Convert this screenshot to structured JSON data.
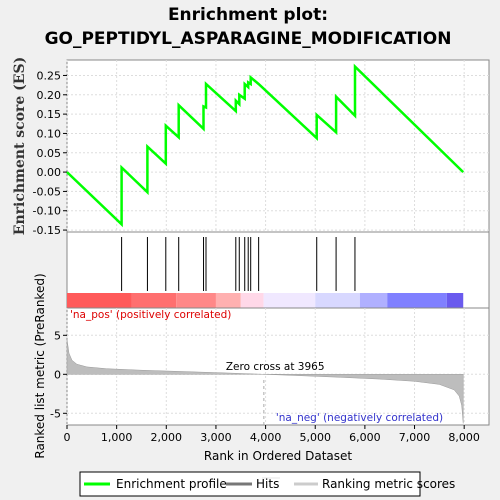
{
  "title_line1": "Enrichment plot:",
  "title_line2": "GO_PEPTIDYL_ASPARAGINE_MODIFICATION",
  "chart_data": {
    "type": "line",
    "x_axis": {
      "label": "Rank in Ordered Dataset",
      "ticks": [
        0,
        1000,
        2000,
        3000,
        4000,
        5000,
        6000,
        7000,
        8000
      ],
      "tick_labels": [
        "0",
        "1,000",
        "2,000",
        "3,000",
        "4,000",
        "5,000",
        "6,000",
        "7,000",
        "8,000"
      ],
      "range": [
        0,
        8500
      ]
    },
    "es_panel": {
      "ylabel": "Enrichment score (ES)",
      "ylim": [
        -0.155,
        0.29
      ],
      "ticks": [
        -0.15,
        -0.1,
        -0.05,
        0.0,
        0.05,
        0.1,
        0.15,
        0.2,
        0.25
      ],
      "tick_labels": [
        "-0.15",
        "-0.10",
        "-0.05",
        "0.00",
        "0.05",
        "0.10",
        "0.15",
        "0.20",
        "0.25"
      ],
      "grid": true,
      "series_color": "#00ff00",
      "profile": [
        [
          0,
          0.0
        ],
        [
          1100,
          -0.135
        ],
        [
          1100,
          0.012
        ],
        [
          1620,
          -0.052
        ],
        [
          1620,
          0.066
        ],
        [
          1990,
          0.022
        ],
        [
          1990,
          0.12
        ],
        [
          2250,
          0.09
        ],
        [
          2250,
          0.173
        ],
        [
          2750,
          0.112
        ],
        [
          2750,
          0.17
        ],
        [
          2800,
          0.167
        ],
        [
          2800,
          0.228
        ],
        [
          3400,
          0.158
        ],
        [
          3400,
          0.185
        ],
        [
          3470,
          0.176
        ],
        [
          3470,
          0.2
        ],
        [
          3580,
          0.19
        ],
        [
          3580,
          0.228
        ],
        [
          3650,
          0.22
        ],
        [
          3650,
          0.232
        ],
        [
          3700,
          0.228
        ],
        [
          3700,
          0.245
        ],
        [
          3860,
          0.228
        ],
        [
          5030,
          0.088
        ],
        [
          5030,
          0.148
        ],
        [
          5420,
          0.103
        ],
        [
          5420,
          0.195
        ],
        [
          5800,
          0.146
        ],
        [
          5800,
          0.273
        ],
        [
          7980,
          0.0
        ]
      ]
    },
    "hits": [
      1100,
      1620,
      1990,
      2250,
      2750,
      2800,
      3400,
      3470,
      3580,
      3650,
      3700,
      3860,
      5030,
      5420,
      5800
    ],
    "heat_bar": {
      "colors": [
        "#ff5a5a",
        "#ff6f6f",
        "#ff8888",
        "#ffb0b0",
        "#ffd8e8",
        "#f0e8ff",
        "#d8d8ff",
        "#b0b0ff",
        "#8080ff",
        "#6a5aee",
        "#3333dd"
      ],
      "stops": [
        0,
        1300,
        2200,
        3000,
        3500,
        3960,
        5000,
        5900,
        6450,
        7650,
        7980
      ]
    },
    "ranked_panel": {
      "ylabel": "Ranked list metric (PreRanked)",
      "ylim": [
        -6.5,
        8.5
      ],
      "ticks": [
        -5,
        0,
        5
      ],
      "tick_labels": [
        "-5",
        "0",
        "5"
      ],
      "grid": true,
      "zero_cross": 3965,
      "zero_cross_label": "Zero cross at 3965",
      "pos_label": "'na_pos' (positively correlated)",
      "neg_label": "'na_neg' (negatively correlated)",
      "metric": [
        [
          0,
          4.5
        ],
        [
          40,
          2.7
        ],
        [
          100,
          1.8
        ],
        [
          200,
          1.3
        ],
        [
          400,
          0.95
        ],
        [
          800,
          0.72
        ],
        [
          1500,
          0.52
        ],
        [
          2500,
          0.32
        ],
        [
          3300,
          0.15
        ],
        [
          3965,
          0.0
        ],
        [
          4600,
          -0.15
        ],
        [
          5500,
          -0.38
        ],
        [
          6300,
          -0.62
        ],
        [
          7000,
          -0.9
        ],
        [
          7500,
          -1.3
        ],
        [
          7800,
          -2.0
        ],
        [
          7900,
          -2.8
        ],
        [
          7950,
          -4.0
        ],
        [
          7980,
          -6.3
        ]
      ]
    },
    "legend": [
      "Enrichment profile",
      "Hits",
      "Ranking metric scores"
    ]
  }
}
